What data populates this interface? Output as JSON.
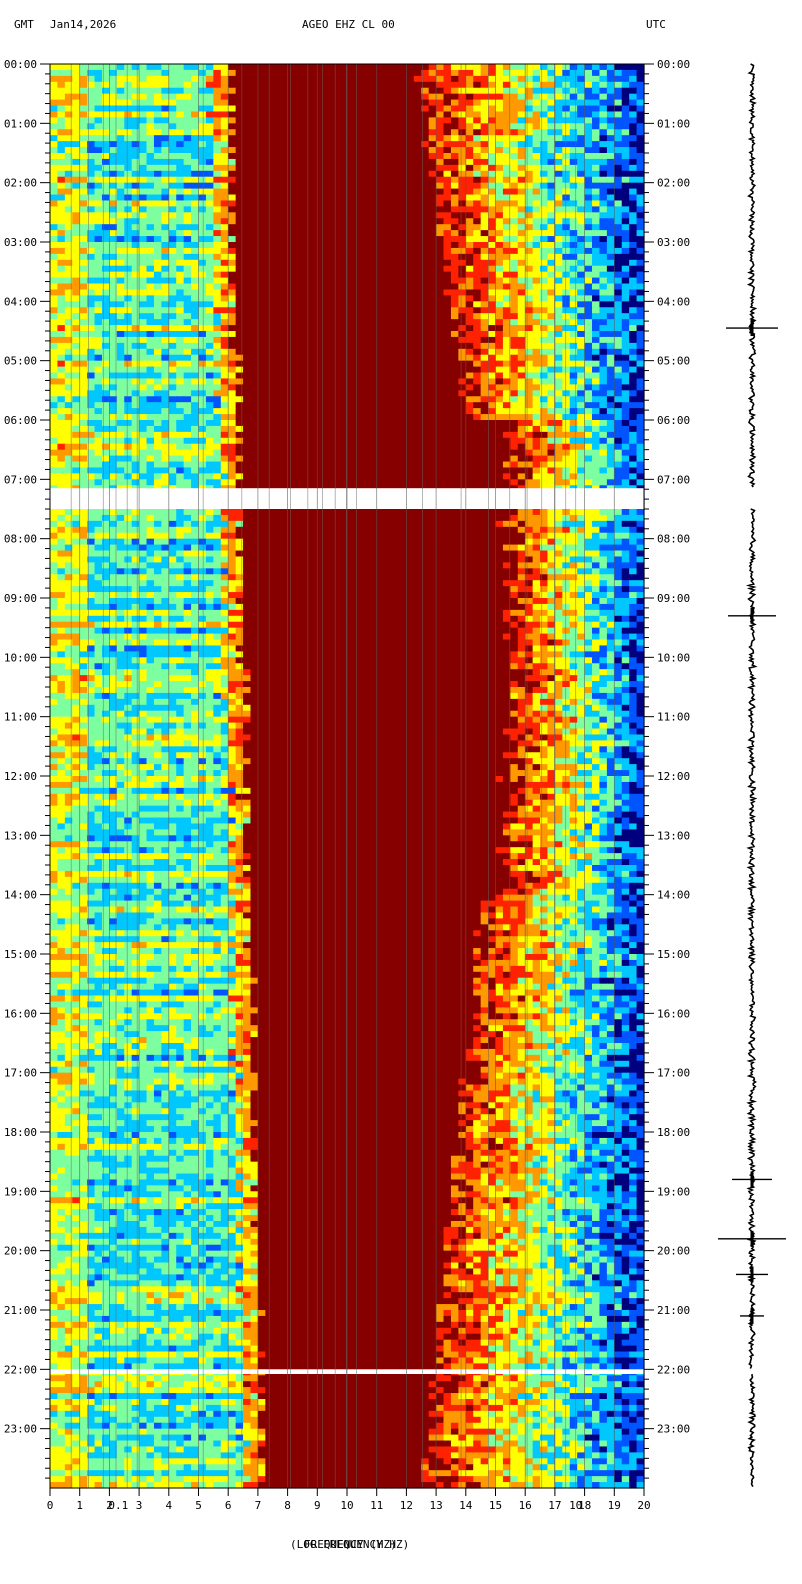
{
  "header": {
    "left_timezone": "GMT",
    "date": "Jan14,2026",
    "station": "AGEO EHZ CL 00",
    "right_timezone": "UTC"
  },
  "chart_data": {
    "type": "heatmap",
    "title": "AGEO EHZ CL 00",
    "xlabel": "FREQUENCY (HZ)",
    "xlabel_overlap": "(LOG FREQUENCY HZ)",
    "xlim": [
      0,
      20
    ],
    "x_ticks": [
      "0",
      "1",
      "2",
      "3",
      "4",
      "5",
      "6",
      "7",
      "8",
      "9",
      "10",
      "11",
      "12",
      "13",
      "14",
      "15",
      "16",
      "17",
      "18",
      "19",
      "20"
    ],
    "x_log_overlap_ticks": [
      "0.1",
      "10"
    ],
    "y_ticks_left": [
      "00:00",
      "01:00",
      "02:00",
      "03:00",
      "04:00",
      "05:00",
      "06:00",
      "07:00",
      "08:00",
      "09:00",
      "10:00",
      "11:00",
      "12:00",
      "13:00",
      "14:00",
      "15:00",
      "16:00",
      "17:00",
      "18:00",
      "19:00",
      "20:00",
      "21:00",
      "22:00",
      "23:00"
    ],
    "y_ticks_right": [
      "00:00",
      "01:00",
      "02:00",
      "03:00",
      "04:00",
      "05:00",
      "06:00",
      "07:00",
      "08:00",
      "09:00",
      "10:00",
      "11:00",
      "12:00",
      "13:00",
      "14:00",
      "15:00",
      "16:00",
      "17:00",
      "18:00",
      "19:00",
      "20:00",
      "21:00",
      "22:00",
      "23:00"
    ],
    "ylim_hours": [
      0,
      24
    ],
    "data_gaps_hours": [
      [
        7.15,
        7.5
      ],
      [
        22.0,
        22.08
      ]
    ],
    "colorscale": [
      "#00007f",
      "#0055ff",
      "#00c8ff",
      "#7dffa0",
      "#ffff00",
      "#ff9900",
      "#ff2200",
      "#870000"
    ],
    "saturation_band_hz": {
      "low_edge_start": 6.0,
      "low_edge_end": 7.2,
      "high_edge_start": 12.2,
      "high_edge_end": 16.0
    },
    "seismic_events_hours": [
      4.45,
      9.3,
      18.8,
      19.8,
      20.4,
      21.1
    ]
  }
}
